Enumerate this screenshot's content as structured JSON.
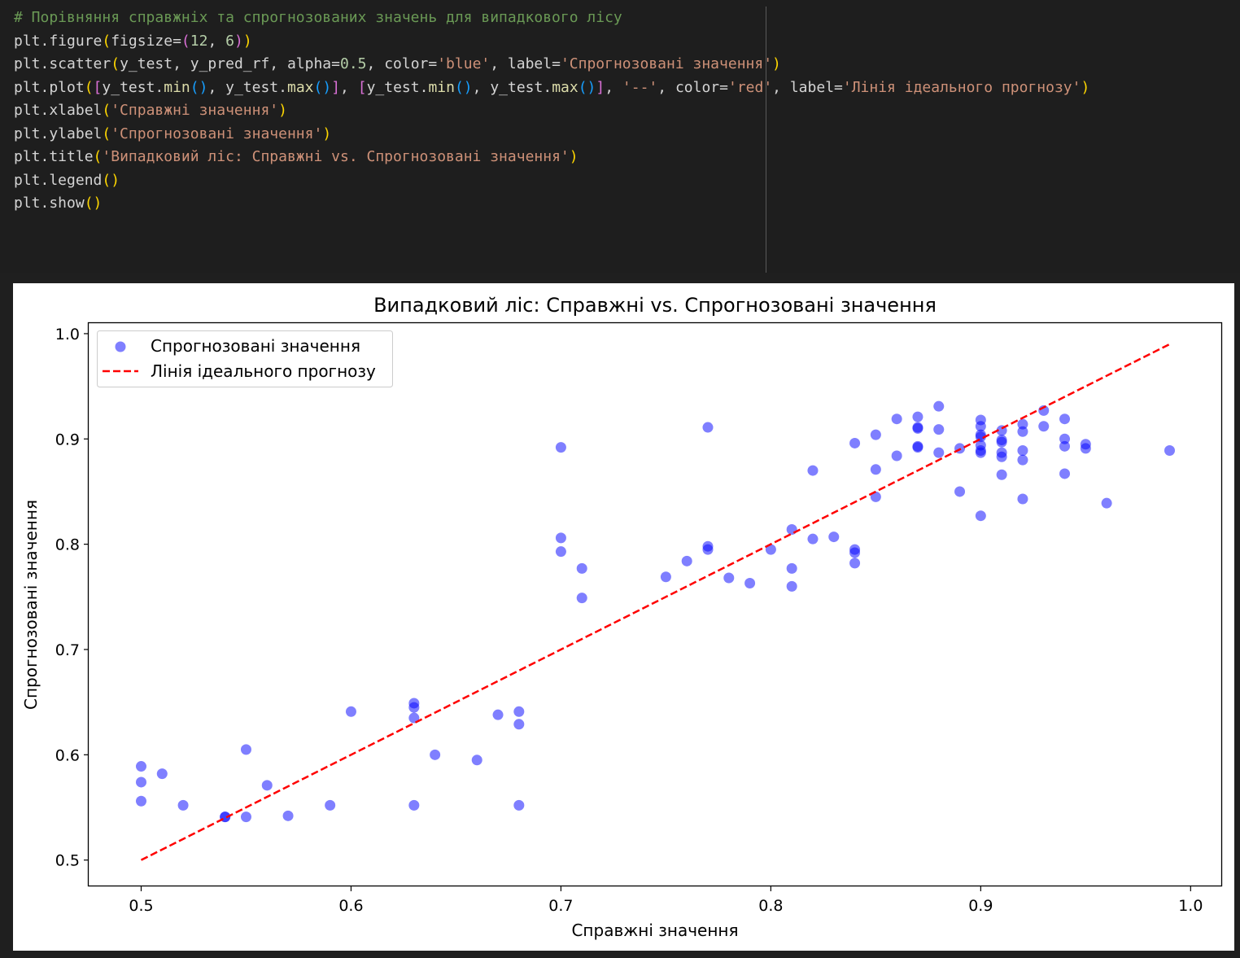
{
  "code_cell": {
    "lines": [
      [
        {
          "t": "# Порівняння справжніх та спрогнозованих значень для випадкового лісу",
          "c": "com"
        }
      ],
      [
        {
          "t": "plt.figure"
        },
        {
          "t": "(",
          "c": "p1"
        },
        {
          "t": "figsize="
        },
        {
          "t": "(",
          "c": "p2"
        },
        {
          "t": "12",
          "c": "num"
        },
        {
          "t": ", "
        },
        {
          "t": "6",
          "c": "num"
        },
        {
          "t": ")",
          "c": "p2"
        },
        {
          "t": ")",
          "c": "p1"
        }
      ],
      [
        {
          "t": "plt.scatter"
        },
        {
          "t": "(",
          "c": "p1"
        },
        {
          "t": "y_test, y_pred_rf, alpha="
        },
        {
          "t": "0.5",
          "c": "num"
        },
        {
          "t": ", color="
        },
        {
          "t": "'blue'",
          "c": "str"
        },
        {
          "t": ", label="
        },
        {
          "t": "'Спрогнозовані значення'",
          "c": "str"
        },
        {
          "t": ")",
          "c": "p1"
        }
      ],
      [
        {
          "t": "plt.plot"
        },
        {
          "t": "(",
          "c": "p1"
        },
        {
          "t": "[",
          "c": "p2"
        },
        {
          "t": "y_test."
        },
        {
          "t": "min",
          "c": "fn"
        },
        {
          "t": "()",
          "c": "p3"
        },
        {
          "t": ", y_test."
        },
        {
          "t": "max",
          "c": "fn"
        },
        {
          "t": "()",
          "c": "p3"
        },
        {
          "t": "]",
          "c": "p2"
        },
        {
          "t": ", "
        },
        {
          "t": "[",
          "c": "p2"
        },
        {
          "t": "y_test."
        },
        {
          "t": "min",
          "c": "fn"
        },
        {
          "t": "()",
          "c": "p3"
        },
        {
          "t": ", y_test."
        },
        {
          "t": "max",
          "c": "fn"
        },
        {
          "t": "()",
          "c": "p3"
        },
        {
          "t": "]",
          "c": "p2"
        },
        {
          "t": ", "
        },
        {
          "t": "'--'",
          "c": "str"
        },
        {
          "t": ", color="
        },
        {
          "t": "'red'",
          "c": "str"
        },
        {
          "t": ", label="
        },
        {
          "t": "'Лінія ідеального прогнозу'",
          "c": "str"
        },
        {
          "t": ")",
          "c": "p1"
        }
      ],
      [
        {
          "t": "plt.xlabel"
        },
        {
          "t": "(",
          "c": "p1"
        },
        {
          "t": "'Справжні значення'",
          "c": "str"
        },
        {
          "t": ")",
          "c": "p1"
        }
      ],
      [
        {
          "t": "plt.ylabel"
        },
        {
          "t": "(",
          "c": "p1"
        },
        {
          "t": "'Спрогнозовані значення'",
          "c": "str"
        },
        {
          "t": ")",
          "c": "p1"
        }
      ],
      [
        {
          "t": "plt.title"
        },
        {
          "t": "(",
          "c": "p1"
        },
        {
          "t": "'Випадковий ліс: Справжні vs. Спрогнозовані значення'",
          "c": "str"
        },
        {
          "t": ")",
          "c": "p1"
        }
      ],
      [
        {
          "t": "plt.legend"
        },
        {
          "t": "()",
          "c": "p1"
        }
      ],
      [
        {
          "t": "plt.show"
        },
        {
          "t": "()",
          "c": "p1"
        }
      ]
    ]
  },
  "chart_data": {
    "type": "scatter",
    "title": "Випадковий ліс: Справжні vs. Спрогнозовані значення",
    "xlabel": "Справжні значення",
    "ylabel": "Спрогнозовані значення",
    "xlim": [
      0.475,
      1.015
    ],
    "ylim": [
      0.475,
      1.01
    ],
    "xticks": [
      0.5,
      0.6,
      0.7,
      0.8,
      0.9,
      1.0
    ],
    "xtick_labels": [
      "0.5",
      "0.6",
      "0.7",
      "0.8",
      "0.9",
      "1.0"
    ],
    "yticks": [
      0.5,
      0.6,
      0.7,
      0.8,
      0.9,
      1.0
    ],
    "ytick_labels": [
      "0.5",
      "0.6",
      "0.7",
      "0.8",
      "0.9",
      "1.0"
    ],
    "grid": false,
    "legend_position": "upper-left",
    "series": [
      {
        "name": "Спрогнозовані значення",
        "kind": "scatter",
        "color": "#0000ff",
        "alpha": 0.5,
        "points": [
          [
            0.5,
            0.589
          ],
          [
            0.5,
            0.574
          ],
          [
            0.5,
            0.556
          ],
          [
            0.51,
            0.582
          ],
          [
            0.52,
            0.552
          ],
          [
            0.54,
            0.541
          ],
          [
            0.54,
            0.541
          ],
          [
            0.55,
            0.605
          ],
          [
            0.55,
            0.541
          ],
          [
            0.56,
            0.571
          ],
          [
            0.57,
            0.542
          ],
          [
            0.59,
            0.552
          ],
          [
            0.6,
            0.641
          ],
          [
            0.63,
            0.649
          ],
          [
            0.63,
            0.645
          ],
          [
            0.63,
            0.635
          ],
          [
            0.63,
            0.552
          ],
          [
            0.64,
            0.6
          ],
          [
            0.66,
            0.595
          ],
          [
            0.67,
            0.638
          ],
          [
            0.68,
            0.641
          ],
          [
            0.68,
            0.629
          ],
          [
            0.68,
            0.552
          ],
          [
            0.7,
            0.892
          ],
          [
            0.7,
            0.806
          ],
          [
            0.7,
            0.793
          ],
          [
            0.71,
            0.777
          ],
          [
            0.71,
            0.749
          ],
          [
            0.75,
            0.769
          ],
          [
            0.76,
            0.784
          ],
          [
            0.77,
            0.911
          ],
          [
            0.77,
            0.798
          ],
          [
            0.77,
            0.795
          ],
          [
            0.78,
            0.768
          ],
          [
            0.79,
            0.763
          ],
          [
            0.8,
            0.795
          ],
          [
            0.81,
            0.814
          ],
          [
            0.81,
            0.777
          ],
          [
            0.81,
            0.76
          ],
          [
            0.82,
            0.87
          ],
          [
            0.82,
            0.805
          ],
          [
            0.83,
            0.807
          ],
          [
            0.84,
            0.896
          ],
          [
            0.84,
            0.795
          ],
          [
            0.84,
            0.792
          ],
          [
            0.84,
            0.782
          ],
          [
            0.85,
            0.904
          ],
          [
            0.85,
            0.871
          ],
          [
            0.85,
            0.845
          ],
          [
            0.86,
            0.919
          ],
          [
            0.86,
            0.884
          ],
          [
            0.87,
            0.921
          ],
          [
            0.87,
            0.911
          ],
          [
            0.87,
            0.91
          ],
          [
            0.87,
            0.893
          ],
          [
            0.87,
            0.892
          ],
          [
            0.88,
            0.931
          ],
          [
            0.88,
            0.909
          ],
          [
            0.88,
            0.887
          ],
          [
            0.89,
            0.891
          ],
          [
            0.89,
            0.85
          ],
          [
            0.9,
            0.918
          ],
          [
            0.9,
            0.912
          ],
          [
            0.9,
            0.904
          ],
          [
            0.9,
            0.902
          ],
          [
            0.9,
            0.894
          ],
          [
            0.9,
            0.889
          ],
          [
            0.9,
            0.887
          ],
          [
            0.9,
            0.827
          ],
          [
            0.91,
            0.908
          ],
          [
            0.91,
            0.899
          ],
          [
            0.91,
            0.897
          ],
          [
            0.91,
            0.887
          ],
          [
            0.91,
            0.883
          ],
          [
            0.91,
            0.866
          ],
          [
            0.92,
            0.914
          ],
          [
            0.92,
            0.907
          ],
          [
            0.92,
            0.889
          ],
          [
            0.92,
            0.88
          ],
          [
            0.92,
            0.843
          ],
          [
            0.93,
            0.927
          ],
          [
            0.93,
            0.912
          ],
          [
            0.94,
            0.919
          ],
          [
            0.94,
            0.9
          ],
          [
            0.94,
            0.893
          ],
          [
            0.94,
            0.867
          ],
          [
            0.95,
            0.895
          ],
          [
            0.95,
            0.891
          ],
          [
            0.96,
            0.839
          ],
          [
            0.99,
            0.889
          ]
        ]
      },
      {
        "name": "Лінія ідеального прогнозу",
        "kind": "line",
        "style": "dashed",
        "color": "#ff0000",
        "x": [
          0.5,
          0.99
        ],
        "y": [
          0.5,
          0.99
        ]
      }
    ]
  }
}
